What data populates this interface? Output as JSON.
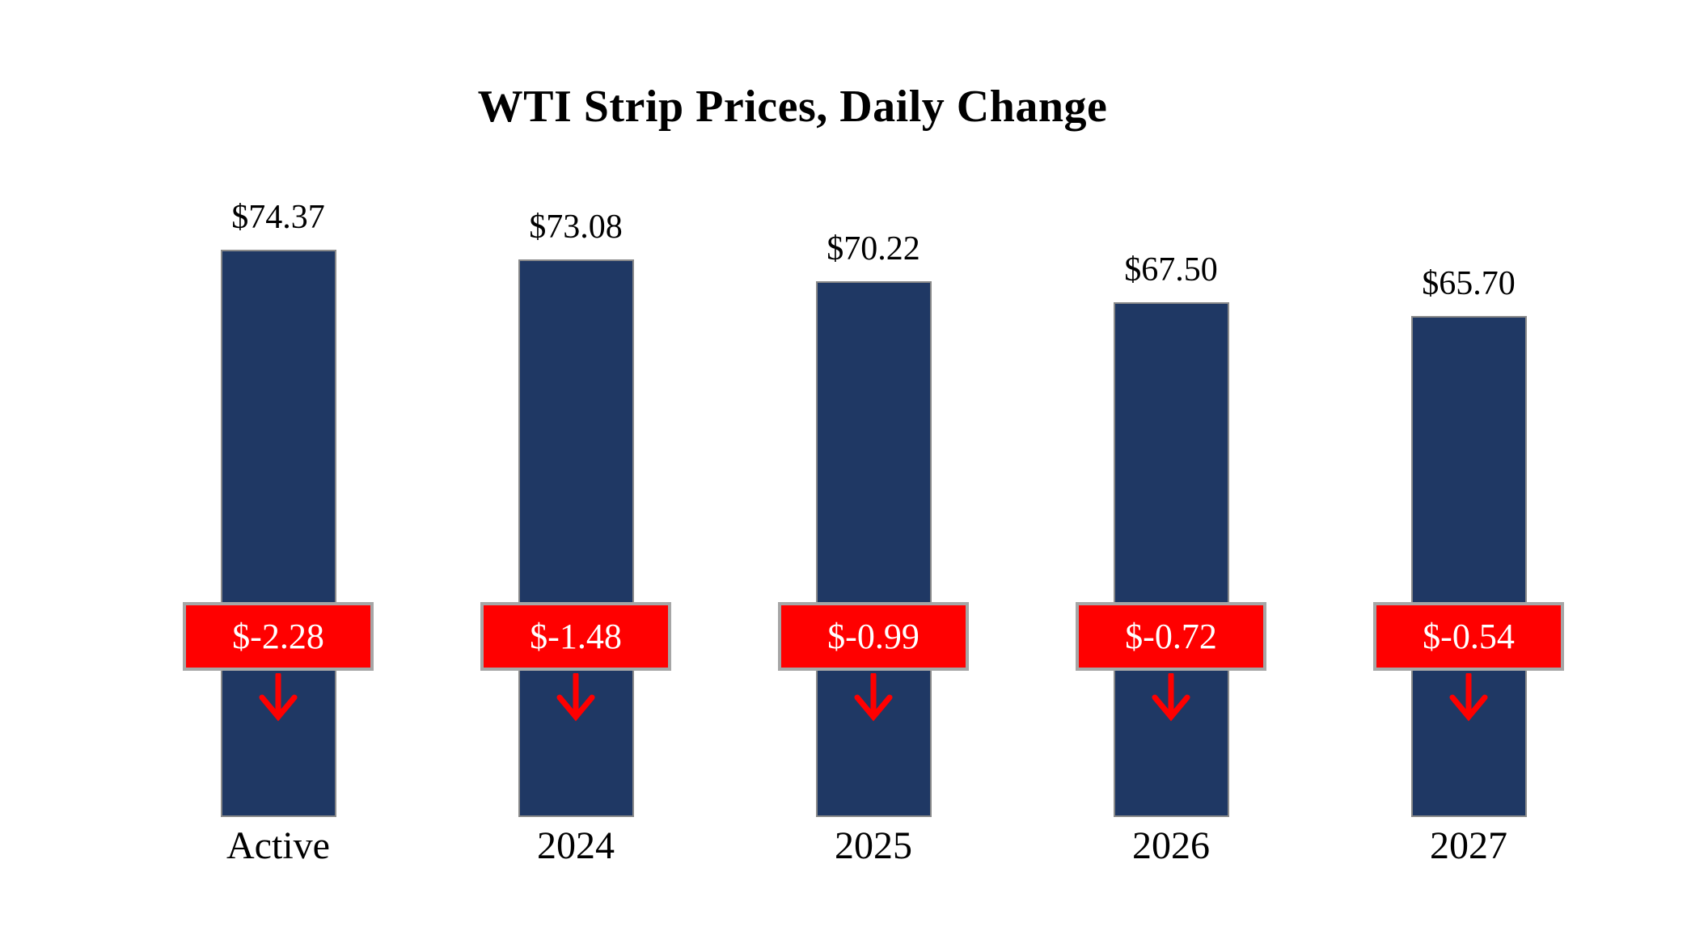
{
  "chart_data": {
    "type": "bar",
    "title": "WTI Strip Prices, Daily Change",
    "categories": [
      "Active",
      "2024",
      "2025",
      "2026",
      "2027"
    ],
    "series": [
      {
        "name": "Strip Price",
        "values": [
          74.37,
          73.08,
          70.22,
          67.5,
          65.7
        ],
        "labels": [
          "$74.37",
          "$73.08",
          "$70.22",
          "$67.50",
          "$65.70"
        ]
      },
      {
        "name": "Daily Change",
        "values": [
          -2.28,
          -1.48,
          -0.99,
          -0.72,
          -0.54
        ],
        "labels": [
          "$-2.28",
          "$-1.48",
          "$-0.99",
          "$-0.72",
          "$-0.54"
        ]
      }
    ],
    "ylim": [
      0,
      80
    ],
    "grid": false,
    "legend": "none",
    "xlabel": "",
    "ylabel": "",
    "colors": {
      "bar": "#1F3864",
      "bar_border": "#8A8A8A",
      "change_box": "#FF0000",
      "change_box_border": "#A6A6A6",
      "change_text": "#FFFFFF",
      "arrow": "#FF0000",
      "value_label": "#000000",
      "category_label": "#000000",
      "title": "#000000",
      "background": "#FFFFFF"
    }
  }
}
